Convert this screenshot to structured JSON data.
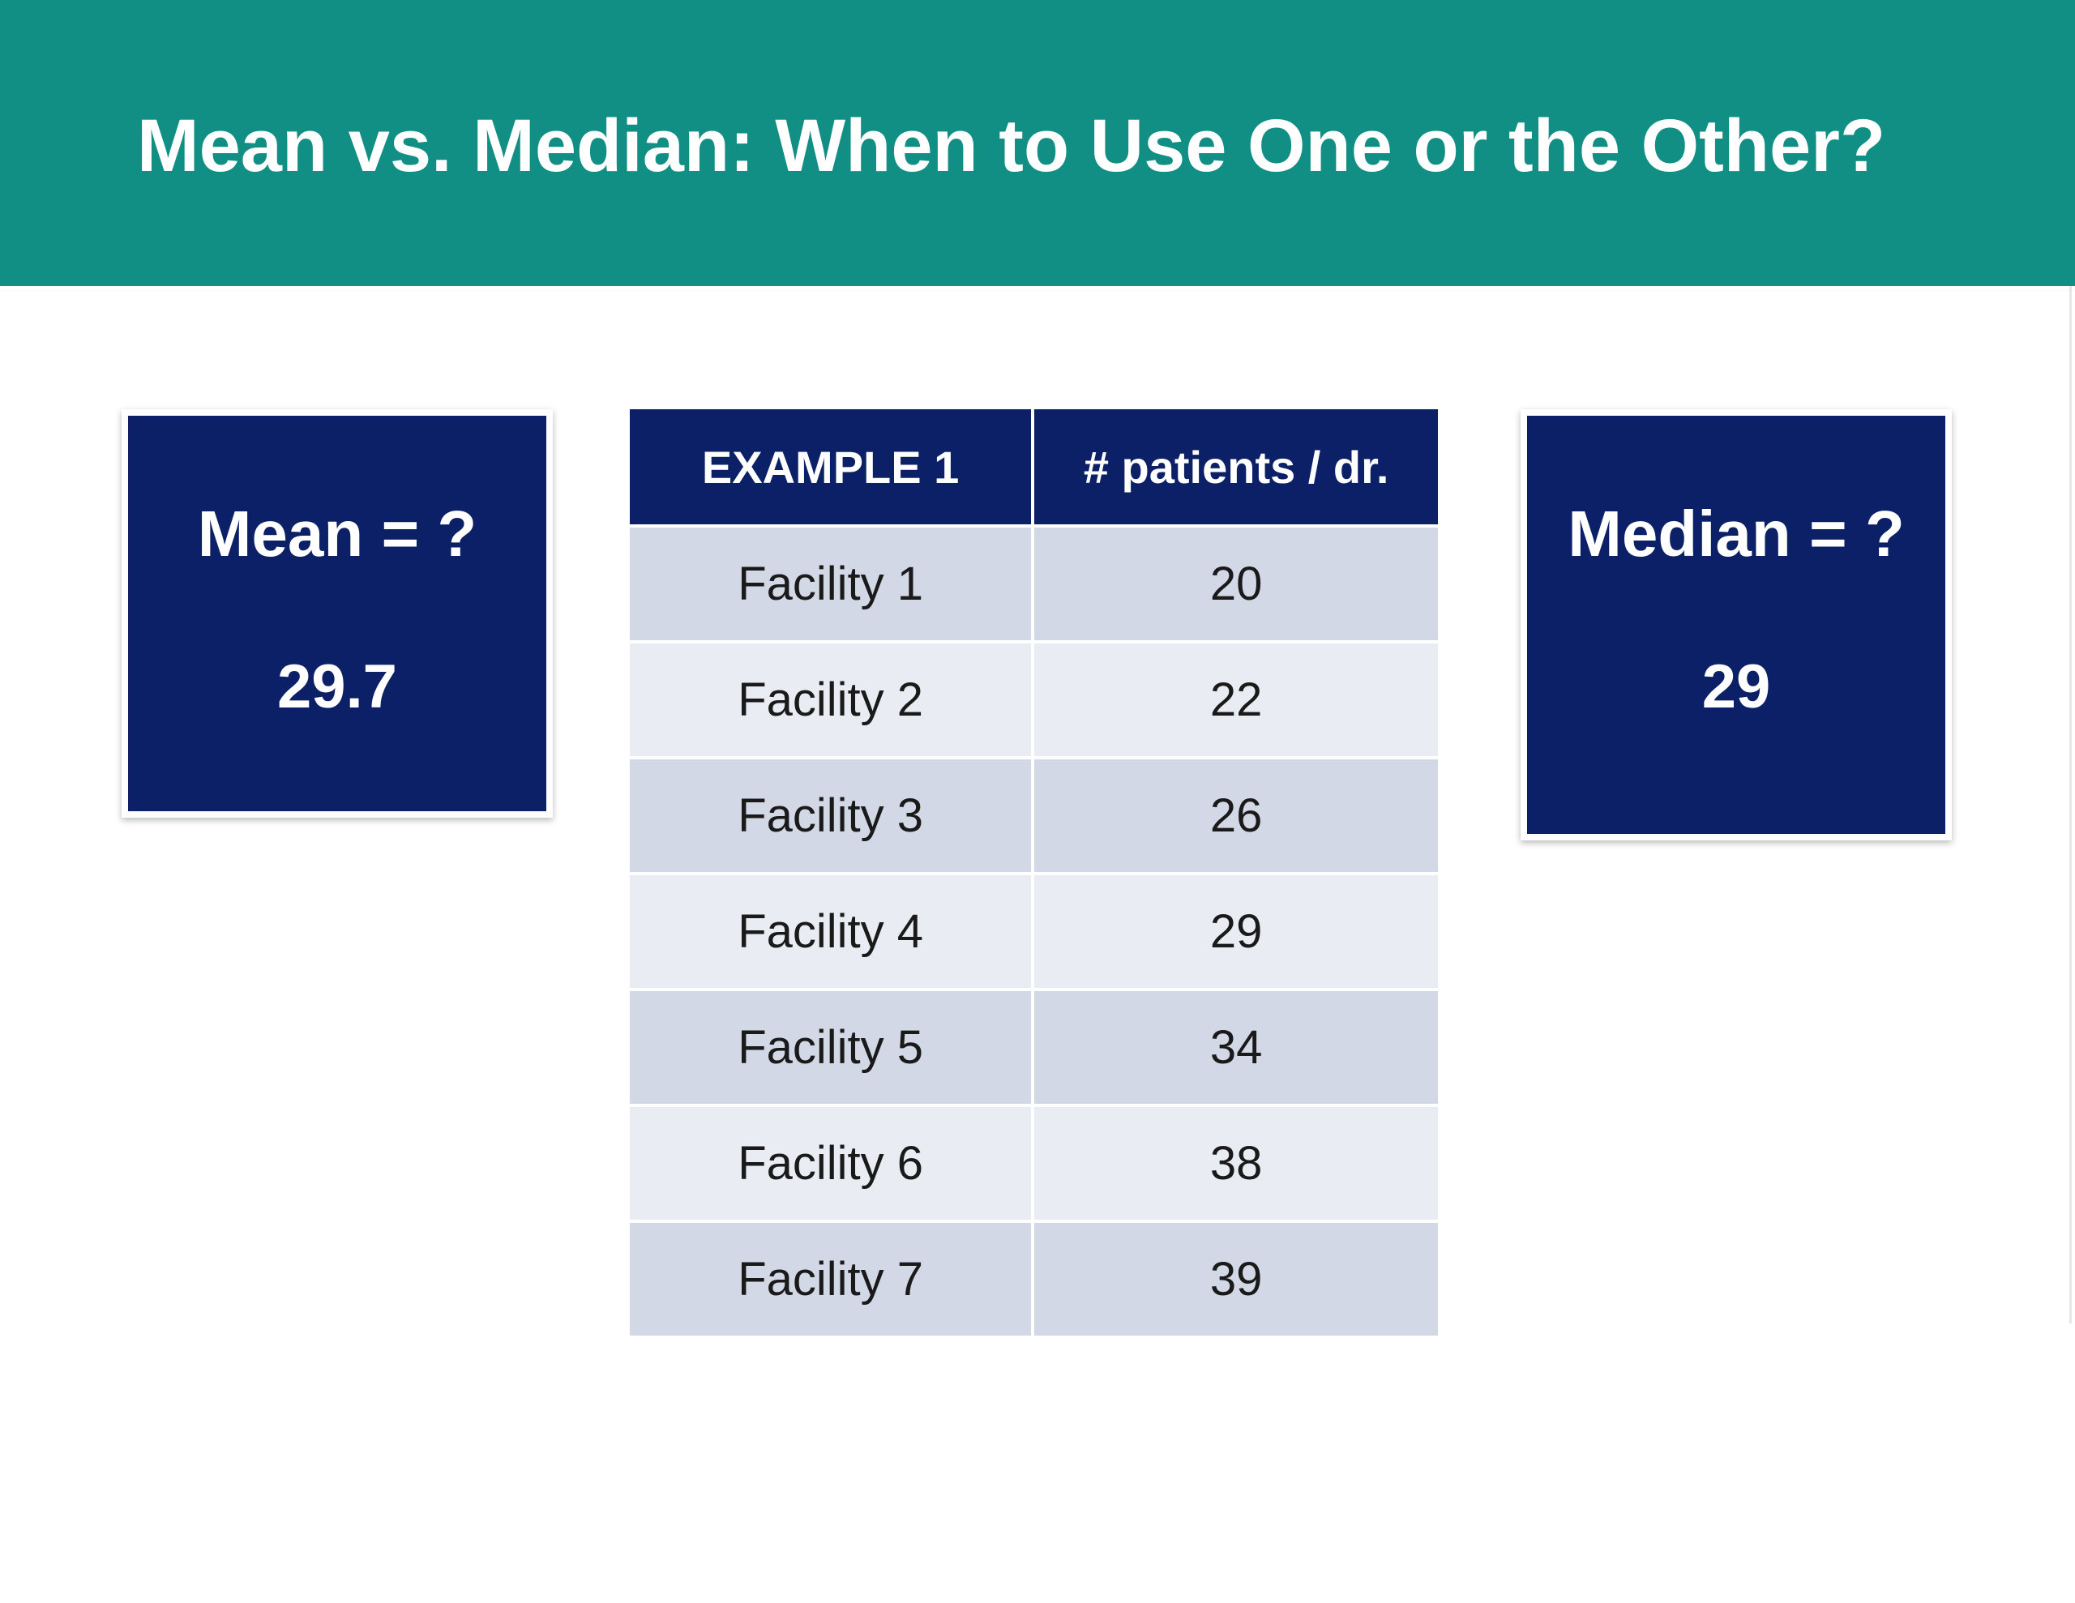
{
  "slide": {
    "title": "Mean vs. Median: When to Use One or the Other?"
  },
  "mean_box": {
    "label": "Mean = ?",
    "value": "29.7"
  },
  "median_box": {
    "label": "Median = ?",
    "value": "29"
  },
  "table": {
    "headers": [
      "EXAMPLE 1",
      "# patients / dr."
    ],
    "rows": [
      [
        "Facility 1",
        "20"
      ],
      [
        "Facility 2",
        "22"
      ],
      [
        "Facility 3",
        "26"
      ],
      [
        "Facility 4",
        "29"
      ],
      [
        "Facility 5",
        "34"
      ],
      [
        "Facility 6",
        "38"
      ],
      [
        "Facility 7",
        "39"
      ]
    ]
  },
  "colors": {
    "title_bar": "#128f84",
    "box_fill": "#0b2066",
    "row_dark": "#d3d8e7",
    "row_light": "#e9ecf3"
  }
}
